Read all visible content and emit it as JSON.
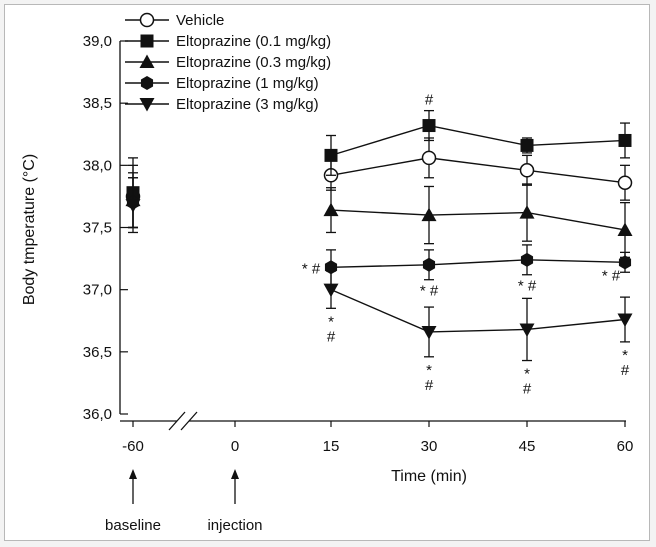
{
  "chart_data": {
    "type": "line",
    "title": "",
    "xlabel": "Time (min)",
    "ylabel": "Body tmperature (°C)",
    "ylim": [
      36.0,
      39.0
    ],
    "yticks": [
      "36,0",
      "36,5",
      "37,0",
      "37,5",
      "38,0",
      "38,5",
      "39,0"
    ],
    "xticks": [
      "-60",
      "0",
      "15",
      "30",
      "45",
      "60"
    ],
    "x": [
      15,
      30,
      45,
      60
    ],
    "baseline_x": -60,
    "annotations": [
      {
        "label": "baseline",
        "x": -60
      },
      {
        "label": "injection",
        "x": 0
      }
    ],
    "legend_position": "top-left",
    "series": [
      {
        "name": "Vehicle",
        "marker": "circle-open",
        "baseline": 37.75,
        "baseline_err": 0.25,
        "values": [
          37.92,
          38.06,
          37.96,
          37.86
        ],
        "errors": [
          0.12,
          0.16,
          0.12,
          0.14
        ],
        "significance": [
          "",
          "",
          "",
          ""
        ]
      },
      {
        "name": "Eltoprazine (0.1 mg/kg)",
        "marker": "square",
        "baseline": 37.78,
        "baseline_err": 0.28,
        "values": [
          38.08,
          38.32,
          38.16,
          38.2
        ],
        "errors": [
          0.16,
          0.12,
          0.06,
          0.14
        ],
        "significance": [
          "",
          "#",
          "",
          ""
        ]
      },
      {
        "name": "Eltoprazine (0.3 mg/kg)",
        "marker": "triangle-up",
        "baseline": 37.72,
        "baseline_err": 0.22,
        "values": [
          37.64,
          37.6,
          37.62,
          37.48
        ],
        "errors": [
          0.18,
          0.23,
          0.23,
          0.22
        ],
        "significance": [
          "",
          "",
          "",
          ""
        ]
      },
      {
        "name": "Eltoprazine (1 mg/kg)",
        "marker": "hexagon",
        "baseline": 37.7,
        "baseline_err": 0.2,
        "values": [
          37.18,
          37.2,
          37.24,
          37.22
        ],
        "errors": [
          0.14,
          0.12,
          0.12,
          0.08
        ],
        "significance": [
          "* #",
          "* #",
          "* #",
          "* #"
        ]
      },
      {
        "name": "Eltoprazine (3 mg/kg)",
        "marker": "triangle-down",
        "baseline": 37.68,
        "baseline_err": 0.22,
        "values": [
          37.0,
          36.66,
          36.68,
          36.76
        ],
        "errors": [
          0.15,
          0.2,
          0.25,
          0.18
        ],
        "significance": [
          "*\n#",
          "*\n#",
          "*\n#",
          "*\n#"
        ]
      }
    ]
  }
}
